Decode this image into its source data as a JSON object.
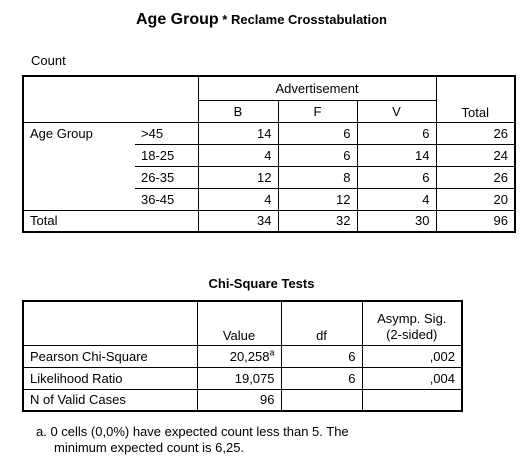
{
  "crosstab": {
    "title_main": "Age Group",
    "title_sub": " * Reclame Crosstabulation",
    "count_label": "Count",
    "col_group_header": "Advertisement",
    "columns": [
      "B",
      "F",
      "V"
    ],
    "total_label": "Total",
    "row_group_label": "Age Group",
    "rows": [
      {
        "label": ">45",
        "values": [
          "14",
          "6",
          "6"
        ],
        "total": "26"
      },
      {
        "label": "18-25",
        "values": [
          "4",
          "6",
          "14"
        ],
        "total": "24"
      },
      {
        "label": "26-35",
        "values": [
          "12",
          "8",
          "6"
        ],
        "total": "26"
      },
      {
        "label": "36-45",
        "values": [
          "4",
          "12",
          "4"
        ],
        "total": "20"
      }
    ],
    "total_row": {
      "label": "Total",
      "values": [
        "34",
        "32",
        "30"
      ],
      "total": "96"
    }
  },
  "chisq": {
    "title": "Chi-Square Tests",
    "headers": {
      "value": "Value",
      "df": "df",
      "sig_line1": "Asymp. Sig.",
      "sig_line2": "(2-sided)"
    },
    "rows": [
      {
        "label": "Pearson Chi-Square",
        "value": "20,258",
        "note": "a",
        "df": "6",
        "sig": ",002"
      },
      {
        "label": "Likelihood Ratio",
        "value": "19,075",
        "note": "",
        "df": "6",
        "sig": ",004"
      },
      {
        "label": "N of Valid Cases",
        "value": "96",
        "note": "",
        "df": "",
        "sig": ""
      }
    ],
    "footnote_line1": "a. 0 cells (0,0%) have expected count less than 5. The",
    "footnote_line2": "minimum expected count is 6,25."
  }
}
